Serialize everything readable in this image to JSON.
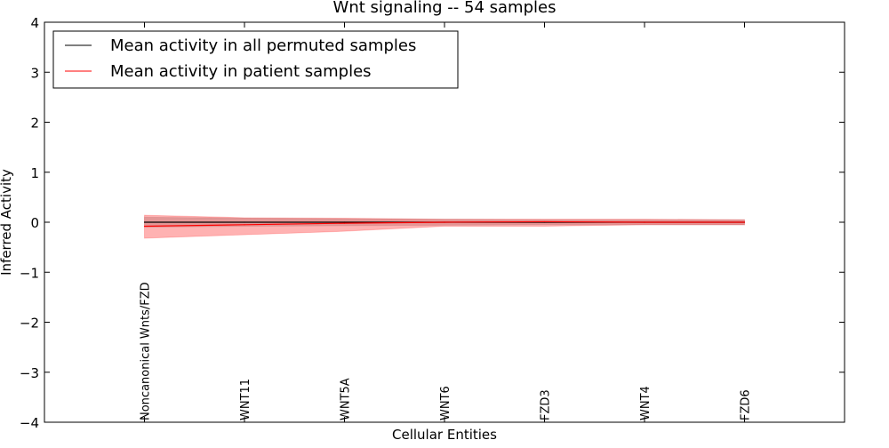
{
  "chart_data": {
    "type": "line",
    "title": "Wnt signaling -- 54 samples",
    "xlabel": "Cellular Entities",
    "ylabel": "Inferred Activity",
    "ylim": [
      -4,
      4
    ],
    "xlim": [
      0,
      8
    ],
    "yticks": [
      "−4",
      "−3",
      "−2",
      "−1",
      "0",
      "1",
      "2",
      "3",
      "4"
    ],
    "ytick_values": [
      -4,
      -3,
      -2,
      -1,
      0,
      1,
      2,
      3,
      4
    ],
    "categories": [
      "Noncanonical Wnts/FZD",
      "WNT11",
      "WNT5A",
      "WNT6",
      "FZD3",
      "WNT4",
      "FZD6"
    ],
    "x": [
      1,
      2,
      3,
      4,
      5,
      6,
      7
    ],
    "legend_position": "top-left",
    "series": [
      {
        "name": "Mean activity in all permuted samples",
        "color": "#000000",
        "values": [
          0,
          0,
          0,
          0,
          0,
          0,
          0
        ],
        "band_lower": [
          -0.1,
          -0.08,
          -0.07,
          -0.06,
          -0.05,
          -0.05,
          -0.05
        ],
        "band_upper": [
          0.1,
          0.08,
          0.07,
          0.06,
          0.05,
          0.05,
          0.05
        ],
        "band_color": "#808080"
      },
      {
        "name": "Mean activity in patient samples",
        "color": "#ff0000",
        "values": [
          -0.08,
          -0.05,
          -0.02,
          0.0,
          0.01,
          0.0,
          0.0
        ],
        "band_lower": [
          -0.32,
          -0.25,
          -0.18,
          -0.08,
          -0.08,
          -0.05,
          -0.05
        ],
        "band_upper": [
          0.14,
          0.09,
          0.08,
          0.06,
          0.06,
          0.06,
          0.05
        ],
        "band_color": "#ff0000"
      }
    ]
  }
}
